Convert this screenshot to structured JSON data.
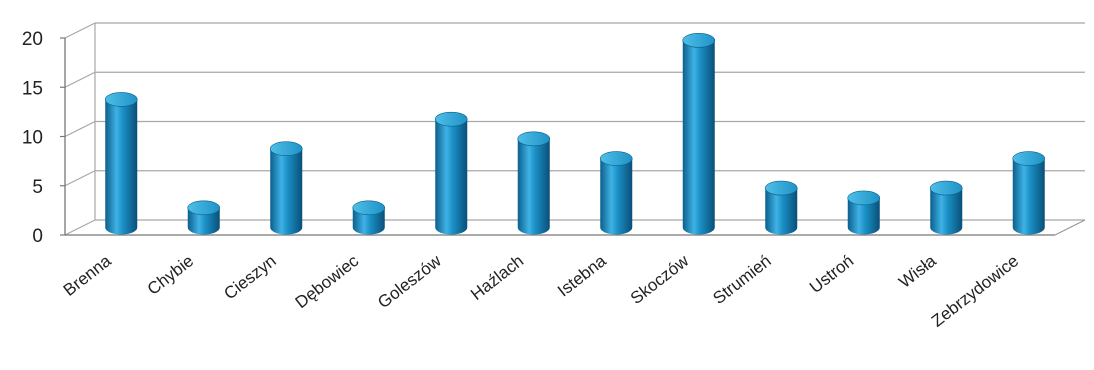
{
  "chart_data": {
    "type": "bar",
    "style": "3d-cylinder",
    "categories": [
      "Brenna",
      "Chybie",
      "Cieszyn",
      "Dębowiec",
      "Goleszów",
      "Haźlach",
      "Istebna",
      "Skoczów",
      "Strumień",
      "Ustroń",
      "Wisła",
      "Zebrzydowice"
    ],
    "values": [
      13,
      2,
      8,
      2,
      11,
      9,
      7,
      19,
      4,
      3,
      4,
      7
    ],
    "yticks": [
      0,
      5,
      10,
      15,
      20
    ],
    "ylim": [
      0,
      20
    ],
    "grid": true,
    "legend": "none",
    "colors": {
      "bar": "#1a8fc4",
      "bar_dark": "#0b5f8c",
      "bar_light": "#6fcaf0",
      "grid": "#a8a8a8"
    }
  }
}
